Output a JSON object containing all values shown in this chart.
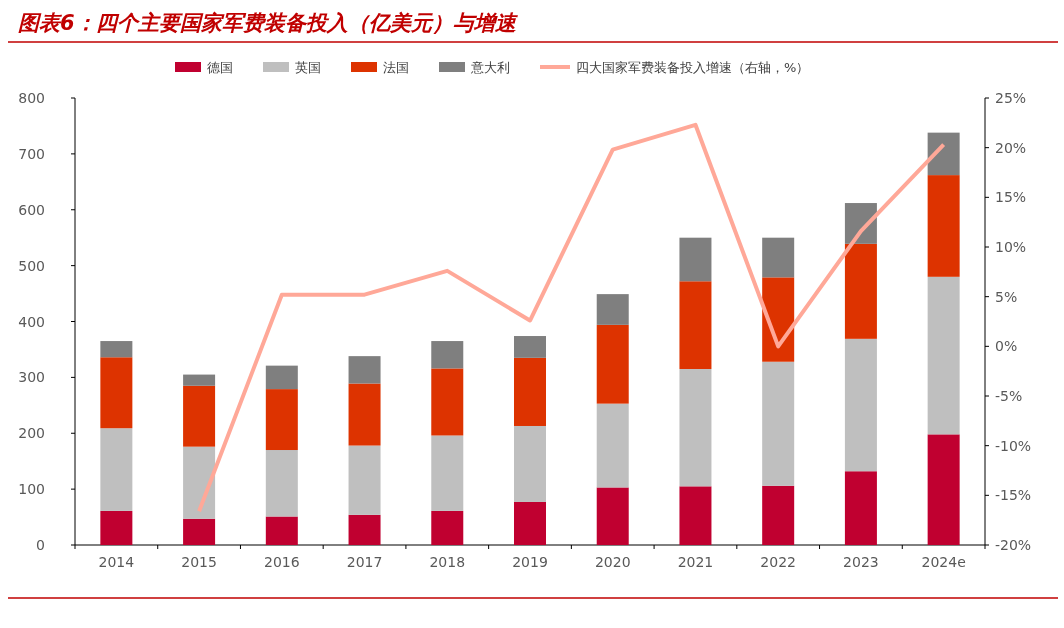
{
  "chart_data": {
    "type": "bar",
    "title": "图表6：四个主要国家军费装备投入（亿美元）与增速",
    "categories": [
      "2014",
      "2015",
      "2016",
      "2017",
      "2018",
      "2019",
      "2020",
      "2021",
      "2022",
      "2023",
      "2024e"
    ],
    "stacked": true,
    "legend": "top",
    "series": [
      {
        "name": "德国",
        "color": "#c00030",
        "values": [
          61,
          47,
          51,
          54,
          61,
          77,
          103,
          105,
          106,
          132,
          198
        ]
      },
      {
        "name": "英国",
        "color": "#bfbfbf",
        "values": [
          148,
          129,
          119,
          124,
          135,
          136,
          150,
          210,
          222,
          237,
          282
        ]
      },
      {
        "name": "法国",
        "color": "#dd3300",
        "values": [
          127,
          109,
          109,
          111,
          120,
          122,
          141,
          157,
          151,
          170,
          182
        ]
      },
      {
        "name": "意大利",
        "color": "#7f7f7f",
        "values": [
          29,
          20,
          42,
          49,
          49,
          39,
          55,
          78,
          71,
          73,
          76
        ]
      },
      {
        "name": "四大国家军费装备投入增速（右轴，%）",
        "type": "line",
        "axis": "y2",
        "color": "#ffa898",
        "values": [
          null,
          -16.6,
          5.2,
          5.2,
          7.6,
          2.6,
          19.8,
          22.3,
          0,
          11.6,
          20.3
        ]
      }
    ],
    "ylim": [
      0,
      800
    ],
    "yticks": [
      0,
      100,
      200,
      300,
      400,
      500,
      600,
      700,
      800
    ],
    "y2lim": [
      -20,
      25
    ],
    "y2ticks": [
      {
        "value": -20,
        "label": "-20%"
      },
      {
        "value": -15,
        "label": "-15%"
      },
      {
        "value": -10,
        "label": "-10%"
      },
      {
        "value": -5,
        "label": "-5%"
      },
      {
        "value": 0,
        "label": "0%"
      },
      {
        "value": 5,
        "label": "5%"
      },
      {
        "value": 10,
        "label": "10%"
      },
      {
        "value": 15,
        "label": "15%"
      },
      {
        "value": 20,
        "label": "20%"
      },
      {
        "value": 25,
        "label": "25%"
      }
    ]
  }
}
